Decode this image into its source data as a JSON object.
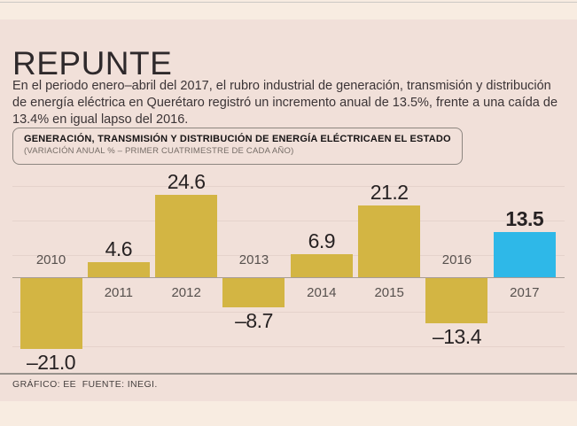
{
  "page": {
    "title": "REPUNTE",
    "intro": "En el periodo enero–abril del 2017, el rubro industrial de generación, transmisión y distribución de energía eléctrica en Querétaro registró un incremento anual de 13.5%, frente a una caída de 13.4% en igual lapso del 2016.",
    "credit": "GRÁFICO: EE  FUENTE: INEGI."
  },
  "chart_header": {
    "title": "GENERACIÓN, TRANSMISIÓN Y DISTRIBUCIÓN DE ENERGÍA ELÉCTRICAEN EL ESTADO",
    "subtitle": "(VARIACIÓN ANUAL % – PRIMER CUATRIMESTRE DE CADA AÑO)"
  },
  "chart_data": {
    "type": "bar",
    "title": "GENERACIÓN, TRANSMISIÓN Y DISTRIBUCIÓN DE ENERGÍA ELÉCTRICAEN EL ESTADO",
    "subtitle": "(VARIACIÓN ANUAL % – PRIMER CUATRIMESTRE DE CADA AÑO)",
    "unit": "%",
    "categories": [
      "2010",
      "2011",
      "2012",
      "2013",
      "2014",
      "2015",
      "2016",
      "2017"
    ],
    "values": [
      -21.0,
      4.6,
      24.6,
      -8.7,
      6.9,
      21.2,
      -13.4,
      13.5
    ],
    "labels": [
      "–21.0",
      "4.6",
      "24.6",
      "–8.7",
      "6.9",
      "21.2",
      "–13.4",
      "13.5"
    ],
    "highlight_index": 7,
    "ylim": [
      -25,
      27
    ],
    "grid": true,
    "legend": "none",
    "colors": {
      "bar": "#d3b543",
      "highlight": "#2eb8e8"
    }
  },
  "colors": {
    "background_band": "#f8ece1",
    "panel": "#f1e0d9",
    "axis": "#a69c95",
    "gridline": "#e5d2cb",
    "text_dark": "#2e292b",
    "text_gray": "#57514e"
  }
}
